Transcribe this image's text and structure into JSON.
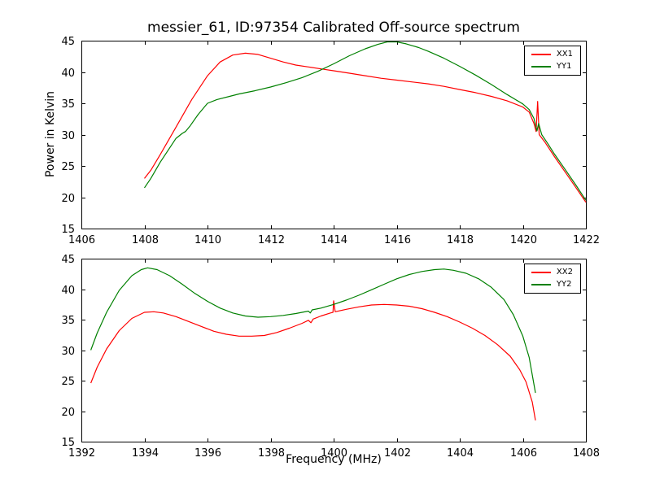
{
  "figure": {
    "background": "#ffffff",
    "axes_color": "#000000"
  },
  "chart_data": [
    {
      "type": "line",
      "title": "messier_61, ID:97354 Calibrated Off-source spectrum",
      "xlabel": "",
      "ylabel": "Power in Kelvin",
      "xlim": [
        1406,
        1422
      ],
      "ylim": [
        15,
        45
      ],
      "xticks": [
        1406,
        1408,
        1410,
        1412,
        1414,
        1416,
        1418,
        1420,
        1422
      ],
      "yticks": [
        15,
        20,
        25,
        30,
        35,
        40,
        45
      ],
      "grid": false,
      "legend_position": "upper right",
      "series": [
        {
          "name": "XX1",
          "color": "#ff0000",
          "points": [
            [
              1408.0,
              23.0
            ],
            [
              1408.2,
              24.3
            ],
            [
              1408.5,
              26.8
            ],
            [
              1409.0,
              31.2
            ],
            [
              1409.5,
              35.6
            ],
            [
              1410.0,
              39.4
            ],
            [
              1410.4,
              41.6
            ],
            [
              1410.8,
              42.7
            ],
            [
              1411.2,
              43.0
            ],
            [
              1411.6,
              42.8
            ],
            [
              1412.0,
              42.2
            ],
            [
              1412.4,
              41.6
            ],
            [
              1412.8,
              41.1
            ],
            [
              1413.2,
              40.8
            ],
            [
              1413.6,
              40.5
            ],
            [
              1414.0,
              40.2
            ],
            [
              1414.5,
              39.8
            ],
            [
              1415.0,
              39.4
            ],
            [
              1415.5,
              39.0
            ],
            [
              1416.0,
              38.7
            ],
            [
              1416.5,
              38.4
            ],
            [
              1417.0,
              38.1
            ],
            [
              1417.5,
              37.7
            ],
            [
              1418.0,
              37.2
            ],
            [
              1418.5,
              36.7
            ],
            [
              1419.0,
              36.1
            ],
            [
              1419.5,
              35.4
            ],
            [
              1420.0,
              34.4
            ],
            [
              1420.2,
              33.6
            ],
            [
              1420.35,
              31.8
            ],
            [
              1420.42,
              30.5
            ],
            [
              1420.47,
              35.3
            ],
            [
              1420.52,
              30.0
            ],
            [
              1420.7,
              28.8
            ],
            [
              1421.0,
              26.5
            ],
            [
              1421.4,
              23.6
            ],
            [
              1421.7,
              21.4
            ],
            [
              1422.0,
              19.2
            ]
          ]
        },
        {
          "name": "YY1",
          "color": "#008000",
          "points": [
            [
              1408.0,
              21.5
            ],
            [
              1408.2,
              23.0
            ],
            [
              1408.5,
              25.6
            ],
            [
              1409.0,
              29.4
            ],
            [
              1409.2,
              30.2
            ],
            [
              1409.3,
              30.5
            ],
            [
              1409.45,
              31.4
            ],
            [
              1409.7,
              33.2
            ],
            [
              1410.0,
              35.0
            ],
            [
              1410.3,
              35.6
            ],
            [
              1410.7,
              36.1
            ],
            [
              1411.0,
              36.5
            ],
            [
              1411.5,
              37.0
            ],
            [
              1412.0,
              37.6
            ],
            [
              1412.5,
              38.3
            ],
            [
              1413.0,
              39.1
            ],
            [
              1413.5,
              40.1
            ],
            [
              1414.0,
              41.3
            ],
            [
              1414.5,
              42.6
            ],
            [
              1415.0,
              43.7
            ],
            [
              1415.4,
              44.4
            ],
            [
              1415.7,
              44.8
            ],
            [
              1416.0,
              44.8
            ],
            [
              1416.3,
              44.5
            ],
            [
              1416.7,
              43.9
            ],
            [
              1417.0,
              43.3
            ],
            [
              1417.5,
              42.2
            ],
            [
              1418.0,
              40.9
            ],
            [
              1418.5,
              39.5
            ],
            [
              1419.0,
              38.0
            ],
            [
              1419.5,
              36.4
            ],
            [
              1420.0,
              34.9
            ],
            [
              1420.2,
              34.0
            ],
            [
              1420.35,
              32.6
            ],
            [
              1420.45,
              30.6
            ],
            [
              1420.5,
              31.8
            ],
            [
              1420.6,
              30.0
            ],
            [
              1420.8,
              28.5
            ],
            [
              1421.0,
              26.9
            ],
            [
              1421.4,
              24.0
            ],
            [
              1421.7,
              21.8
            ],
            [
              1422.0,
              19.5
            ]
          ]
        }
      ]
    },
    {
      "type": "line",
      "title": "",
      "xlabel": "Frequency (MHz)",
      "ylabel": "",
      "xlim": [
        1392,
        1408
      ],
      "ylim": [
        15,
        45
      ],
      "xticks": [
        1392,
        1394,
        1396,
        1398,
        1400,
        1402,
        1404,
        1406,
        1408
      ],
      "yticks": [
        15,
        20,
        25,
        30,
        35,
        40,
        45
      ],
      "grid": false,
      "legend_position": "upper right",
      "series": [
        {
          "name": "XX2",
          "color": "#ff0000",
          "points": [
            [
              1392.3,
              24.6
            ],
            [
              1392.5,
              27.2
            ],
            [
              1392.8,
              30.2
            ],
            [
              1393.2,
              33.2
            ],
            [
              1393.6,
              35.2
            ],
            [
              1394.0,
              36.2
            ],
            [
              1394.3,
              36.3
            ],
            [
              1394.6,
              36.1
            ],
            [
              1395.0,
              35.5
            ],
            [
              1395.4,
              34.7
            ],
            [
              1395.8,
              33.9
            ],
            [
              1396.2,
              33.1
            ],
            [
              1396.6,
              32.6
            ],
            [
              1397.0,
              32.3
            ],
            [
              1397.4,
              32.3
            ],
            [
              1397.8,
              32.4
            ],
            [
              1398.2,
              32.9
            ],
            [
              1398.6,
              33.6
            ],
            [
              1399.0,
              34.4
            ],
            [
              1399.2,
              34.9
            ],
            [
              1399.28,
              34.5
            ],
            [
              1399.35,
              35.1
            ],
            [
              1399.6,
              35.6
            ],
            [
              1399.9,
              36.1
            ],
            [
              1399.98,
              36.2
            ],
            [
              1400.0,
              38.1
            ],
            [
              1400.05,
              36.3
            ],
            [
              1400.4,
              36.7
            ],
            [
              1400.8,
              37.1
            ],
            [
              1401.2,
              37.4
            ],
            [
              1401.6,
              37.5
            ],
            [
              1402.0,
              37.4
            ],
            [
              1402.4,
              37.2
            ],
            [
              1402.8,
              36.8
            ],
            [
              1403.2,
              36.2
            ],
            [
              1403.6,
              35.5
            ],
            [
              1404.0,
              34.6
            ],
            [
              1404.4,
              33.6
            ],
            [
              1404.8,
              32.4
            ],
            [
              1405.2,
              30.9
            ],
            [
              1405.6,
              29.0
            ],
            [
              1405.9,
              26.8
            ],
            [
              1406.1,
              24.8
            ],
            [
              1406.3,
              21.5
            ],
            [
              1406.4,
              18.5
            ]
          ]
        },
        {
          "name": "YY2",
          "color": "#008000",
          "points": [
            [
              1392.3,
              30.0
            ],
            [
              1392.5,
              32.8
            ],
            [
              1392.8,
              36.2
            ],
            [
              1393.2,
              39.8
            ],
            [
              1393.6,
              42.2
            ],
            [
              1393.9,
              43.2
            ],
            [
              1394.1,
              43.5
            ],
            [
              1394.4,
              43.2
            ],
            [
              1394.8,
              42.2
            ],
            [
              1395.2,
              40.8
            ],
            [
              1395.6,
              39.3
            ],
            [
              1396.0,
              38.0
            ],
            [
              1396.4,
              36.9
            ],
            [
              1396.8,
              36.1
            ],
            [
              1397.2,
              35.6
            ],
            [
              1397.6,
              35.4
            ],
            [
              1398.0,
              35.5
            ],
            [
              1398.4,
              35.7
            ],
            [
              1398.8,
              36.0
            ],
            [
              1399.2,
              36.4
            ],
            [
              1399.26,
              36.1
            ],
            [
              1399.32,
              36.6
            ],
            [
              1399.6,
              36.9
            ],
            [
              1400.0,
              37.5
            ],
            [
              1400.4,
              38.2
            ],
            [
              1400.8,
              39.0
            ],
            [
              1401.2,
              39.9
            ],
            [
              1401.6,
              40.8
            ],
            [
              1402.0,
              41.7
            ],
            [
              1402.4,
              42.4
            ],
            [
              1402.8,
              42.9
            ],
            [
              1403.2,
              43.2
            ],
            [
              1403.5,
              43.3
            ],
            [
              1403.8,
              43.1
            ],
            [
              1404.2,
              42.6
            ],
            [
              1404.6,
              41.7
            ],
            [
              1405.0,
              40.3
            ],
            [
              1405.4,
              38.3
            ],
            [
              1405.7,
              35.8
            ],
            [
              1406.0,
              32.3
            ],
            [
              1406.2,
              28.8
            ],
            [
              1406.4,
              23.0
            ]
          ]
        }
      ]
    }
  ]
}
